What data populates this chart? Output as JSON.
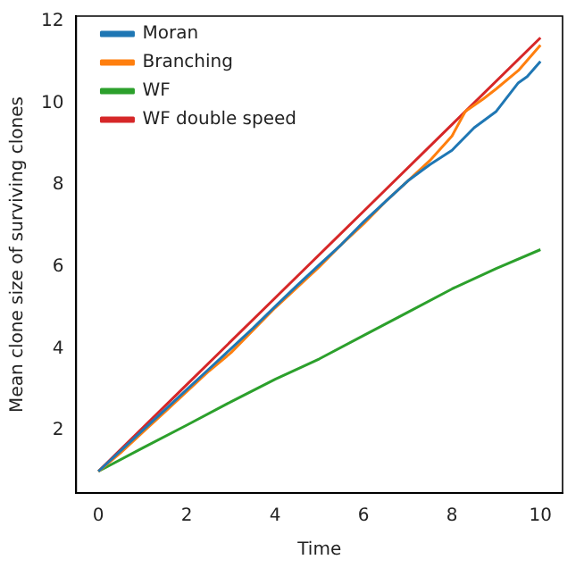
{
  "chart_data": {
    "type": "line",
    "xlabel": "Time",
    "ylabel": "Mean clone size of surviving clones",
    "xlim": [
      -0.5,
      10.5
    ],
    "ylim": [
      0.47,
      12.13
    ],
    "xticks": [
      0,
      2,
      4,
      6,
      8,
      10
    ],
    "yticks": [
      2,
      4,
      6,
      8,
      10,
      12
    ],
    "grid": false,
    "legend": "top left",
    "marker": "none",
    "line_style": "solid",
    "series": [
      {
        "name": "Moran",
        "color": "#1f77b4",
        "x": [
          0,
          0.5,
          1,
          1.5,
          2,
          2.5,
          3,
          3.5,
          4,
          4.5,
          5,
          5.5,
          6,
          6.5,
          7,
          7.5,
          8,
          8.5,
          9,
          9.5,
          9.7,
          10
        ],
        "values": [
          1,
          1.5,
          2.0,
          2.5,
          3.0,
          3.5,
          4.0,
          4.5,
          5.03,
          5.55,
          6.05,
          6.55,
          7.1,
          7.6,
          8.1,
          8.5,
          8.85,
          9.4,
          9.8,
          10.5,
          10.65,
          11.02
        ]
      },
      {
        "name": "Branching",
        "color": "#ff7f0e",
        "x": [
          0,
          0.5,
          1,
          1.5,
          2,
          2.5,
          3,
          3.5,
          4,
          4.5,
          5,
          5.5,
          6,
          6.5,
          7,
          7.5,
          8,
          8.3,
          8.7,
          9,
          9.5,
          10
        ],
        "values": [
          1,
          1.45,
          1.95,
          2.45,
          2.95,
          3.45,
          3.9,
          4.45,
          5.0,
          5.5,
          6.0,
          6.55,
          7.05,
          7.6,
          8.1,
          8.6,
          9.2,
          9.8,
          10.1,
          10.35,
          10.8,
          11.42
        ]
      },
      {
        "name": "WF",
        "color": "#2ca02c",
        "x": [
          0,
          1,
          2,
          3,
          4,
          5,
          6,
          7,
          8,
          9,
          10
        ],
        "values": [
          1,
          1.57,
          2.13,
          2.7,
          3.25,
          3.75,
          4.32,
          4.89,
          5.46,
          5.96,
          6.42
        ]
      },
      {
        "name": "WF double speed",
        "color": "#d62728",
        "x": [
          0,
          2,
          4,
          6,
          8,
          10
        ],
        "values": [
          1,
          3.12,
          5.24,
          7.36,
          9.48,
          11.6
        ]
      }
    ]
  }
}
